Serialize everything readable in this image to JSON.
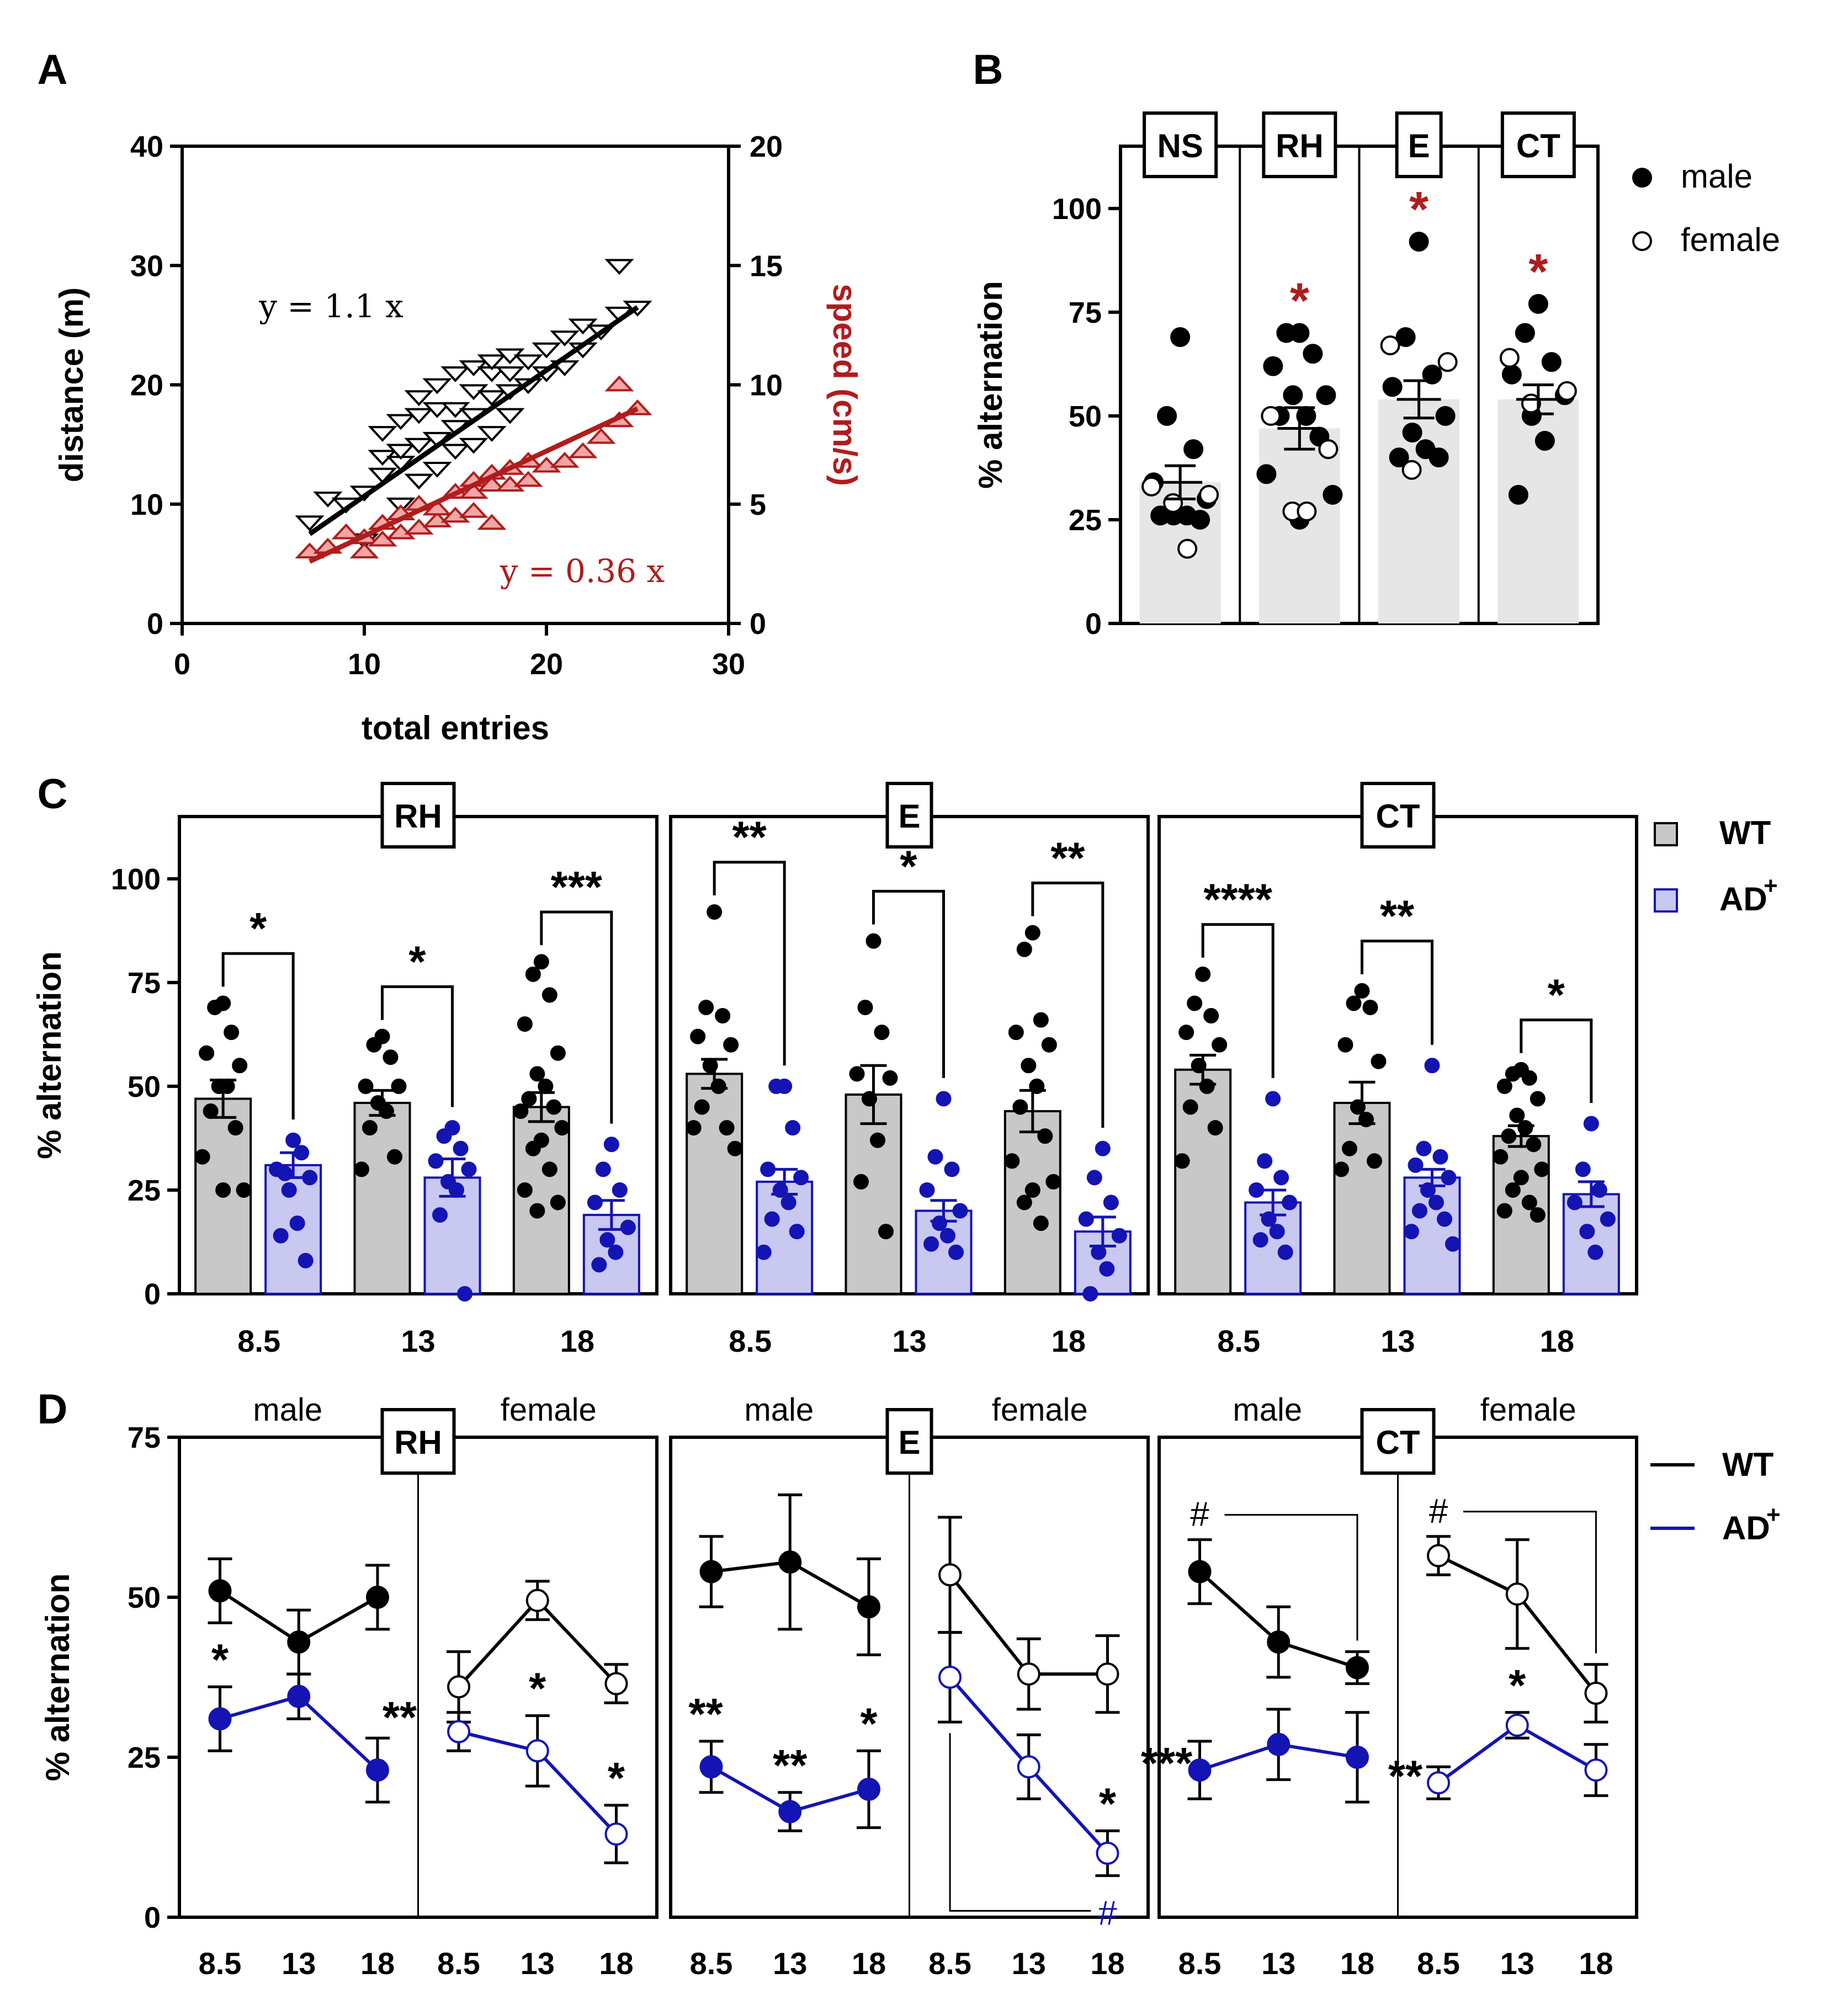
{
  "colors": {
    "black": "#000000",
    "red": "#b01c1c",
    "red_fill": "#f2a6a6",
    "blue": "#1414b4",
    "blue_fill": "#c8c8f0",
    "gray_bar": "#c8c8c8",
    "gray_bar_light": "#e6e6e6",
    "gray_tri": "#8a8a8a"
  },
  "panel_letters": [
    "A",
    "B",
    "C",
    "D"
  ],
  "chart_data": [
    {
      "panel": "A",
      "type": "scatter",
      "xlabel": "total entries",
      "ylabel": "distance (m)",
      "y2label": "speed (cm/s)",
      "xlim": [
        0,
        30
      ],
      "xticks": [
        0,
        10,
        20,
        30
      ],
      "ylim": [
        0,
        40
      ],
      "yticks": [
        0,
        10,
        20,
        30,
        40
      ],
      "y2lim": [
        0,
        20
      ],
      "y2ticks": [
        0,
        5,
        10,
        15,
        20
      ],
      "annotations": [
        "y = 1.1 x",
        "y = 0.36 x"
      ],
      "series": [
        {
          "axis": "left",
          "marker": "triangle-down",
          "fit": {
            "x": [
              7,
              25
            ],
            "y": [
              7.5,
              26.5
            ]
          },
          "points": [
            [
              7,
              8.5
            ],
            [
              8,
              10.5
            ],
            [
              9,
              10
            ],
            [
              10,
              7
            ],
            [
              10,
              11
            ],
            [
              11,
              12.5
            ],
            [
              11,
              14
            ],
            [
              11,
              16
            ],
            [
              12,
              10
            ],
            [
              12,
              13.5
            ],
            [
              12,
              14.5
            ],
            [
              12,
              17
            ],
            [
              13,
              12
            ],
            [
              13,
              15
            ],
            [
              13,
              17.5
            ],
            [
              13,
              19
            ],
            [
              14,
              13
            ],
            [
              14,
              15.5
            ],
            [
              14,
              18
            ],
            [
              14,
              20
            ],
            [
              15,
              14.5
            ],
            [
              15,
              16.5
            ],
            [
              15,
              18
            ],
            [
              15,
              21
            ],
            [
              16,
              15
            ],
            [
              16,
              17.5
            ],
            [
              16,
              19.5
            ],
            [
              16,
              21.5
            ],
            [
              17,
              16
            ],
            [
              17,
              19
            ],
            [
              17,
              21
            ],
            [
              17,
              22
            ],
            [
              18,
              17.5
            ],
            [
              18,
              19.5
            ],
            [
              18,
              21
            ],
            [
              18,
              22.5
            ],
            [
              19,
              20
            ],
            [
              19,
              22
            ],
            [
              20,
              21
            ],
            [
              20,
              23
            ],
            [
              21,
              21.5
            ],
            [
              21,
              24
            ],
            [
              22,
              23
            ],
            [
              22,
              25
            ],
            [
              23,
              24.5
            ],
            [
              24,
              26
            ],
            [
              24,
              30
            ],
            [
              25,
              26.5
            ]
          ]
        },
        {
          "axis": "right",
          "marker": "triangle-up",
          "fit": {
            "x": [
              7,
              25
            ],
            "y": [
              2.6,
              9.0
            ]
          },
          "points": [
            [
              7,
              3
            ],
            [
              8,
              3.2
            ],
            [
              9,
              3.8
            ],
            [
              10,
              3
            ],
            [
              10,
              3.6
            ],
            [
              11,
              3.5
            ],
            [
              11,
              4.2
            ],
            [
              12,
              3.8
            ],
            [
              12,
              4.6
            ],
            [
              13,
              4
            ],
            [
              13,
              5
            ],
            [
              14,
              4.3
            ],
            [
              14,
              4.8
            ],
            [
              15,
              4.5
            ],
            [
              15,
              5.5
            ],
            [
              16,
              4.7
            ],
            [
              16,
              5.5
            ],
            [
              16,
              6
            ],
            [
              17,
              4.2
            ],
            [
              17,
              5.8
            ],
            [
              17,
              6.3
            ],
            [
              18,
              5.8
            ],
            [
              18,
              6.5
            ],
            [
              19,
              6
            ],
            [
              19,
              6.8
            ],
            [
              20,
              6.6
            ],
            [
              21,
              6.8
            ],
            [
              22,
              7.2
            ],
            [
              23,
              7.8
            ],
            [
              24,
              8.5
            ],
            [
              24,
              10
            ],
            [
              25,
              9
            ]
          ]
        }
      ]
    },
    {
      "panel": "B",
      "type": "bar",
      "ylabel": "% alternation",
      "ylim": [
        0,
        115
      ],
      "yticks": [
        0,
        25,
        50,
        75,
        100
      ],
      "categories": [
        "NS",
        "RH",
        "E",
        "CT"
      ],
      "means": [
        34,
        47,
        54,
        54
      ],
      "sem": [
        4,
        5,
        4.5,
        3.5
      ],
      "significance": [
        "",
        "*",
        "*",
        "*"
      ],
      "legend": [
        "male",
        "female"
      ],
      "legend_position": "top-right",
      "points": [
        {
          "male": [
            69,
            50,
            42,
            34,
            30,
            26,
            26,
            26,
            25
          ],
          "female": [
            33,
            31,
            29,
            18
          ]
        },
        {
          "male": [
            70,
            70,
            65,
            62,
            55,
            55,
            50,
            50,
            45,
            36,
            31,
            25
          ],
          "female": [
            50,
            42,
            27,
            27
          ]
        },
        {
          "male": [
            92,
            69,
            60,
            57,
            50,
            46,
            42,
            40,
            40
          ],
          "female": [
            67,
            63,
            37
          ]
        },
        {
          "male": [
            77,
            70,
            63,
            60,
            55,
            50,
            44,
            31
          ],
          "female": [
            64,
            56,
            53
          ]
        }
      ]
    },
    {
      "panel": "C",
      "type": "bar",
      "ylabel": "% alternation",
      "ylim": [
        0,
        115
      ],
      "yticks": [
        0,
        25,
        50,
        75,
        100
      ],
      "legend": [
        "WT",
        "AD+"
      ],
      "legend_position": "top-right",
      "panels": [
        {
          "name": "RH",
          "ages": [
            "8.5",
            "13",
            "18"
          ],
          "sig": [
            "*",
            "*",
            "***"
          ],
          "wt": {
            "means": [
              47,
              46,
              45
            ],
            "sem": [
              4.5,
              3,
              3.5
            ],
            "points": [
              [
                70,
                69,
                63,
                58,
                55,
                50,
                50,
                44,
                40,
                33,
                25,
                25
              ],
              [
                62,
                60,
                57,
                50,
                50,
                46,
                44,
                40,
                33,
                30
              ],
              [
                80,
                77,
                72,
                65,
                58,
                53,
                50,
                47,
                45,
                44,
                40,
                37,
                35,
                30,
                25,
                22,
                20
              ]
            ]
          },
          "ad": {
            "means": [
              31,
              28,
              19
            ],
            "sem": [
              3,
              4.5,
              3.5
            ],
            "points": [
              [
                37,
                29,
                34,
                30,
                28,
                25,
                17,
                14,
                8
              ],
              [
                40,
                38,
                35,
                32,
                30,
                27,
                25,
                19,
                0
              ],
              [
                36,
                30,
                25,
                22,
                16,
                13,
                10,
                7
              ]
            ]
          }
        },
        {
          "name": "E",
          "ages": [
            "8.5",
            "13",
            "18"
          ],
          "sig": [
            "**",
            "*",
            "**"
          ],
          "wt": {
            "means": [
              53,
              48,
              44
            ],
            "sem": [
              3.5,
              7,
              5
            ],
            "points": [
              [
                92,
                69,
                67,
                62,
                60,
                55,
                50,
                45,
                40,
                40,
                35
              ],
              [
                85,
                69,
                63,
                53,
                52,
                47,
                37,
                27,
                15
              ],
              [
                87,
                83,
                66,
                63,
                60,
                55,
                50,
                45,
                38,
                32,
                27,
                25,
                22,
                17
              ]
            ]
          },
          "ad": {
            "means": [
              27,
              20,
              15
            ],
            "sem": [
              3,
              2.5,
              3.5
            ],
            "points": [
              [
                50,
                50,
                40,
                30,
                28,
                25,
                22,
                18,
                15,
                10
              ],
              [
                47,
                33,
                30,
                25,
                20,
                17,
                14,
                12,
                10
              ],
              [
                35,
                28,
                22,
                18,
                14,
                10,
                6,
                0
              ]
            ]
          }
        },
        {
          "name": "CT",
          "ages": [
            "8.5",
            "13",
            "18"
          ],
          "sig": [
            "****",
            "**",
            "*"
          ],
          "wt": {
            "means": [
              54,
              46,
              38
            ],
            "sem": [
              3.5,
              5,
              2.5
            ],
            "points": [
              [
                77,
                70,
                67,
                63,
                60,
                55,
                50,
                45,
                40,
                32
              ],
              [
                73,
                70,
                69,
                60,
                56,
                45,
                42,
                35,
                32,
                30
              ],
              [
                54,
                53,
                52,
                50,
                47,
                43,
                40,
                38,
                36,
                33,
                30,
                28,
                25,
                22,
                20,
                19
              ]
            ]
          },
          "ad": {
            "means": [
              22,
              28,
              24
            ],
            "sem": [
              3,
              2,
              3
            ],
            "points": [
              [
                47,
                32,
                28,
                25,
                22,
                18,
                15,
                13,
                10
              ],
              [
                55,
                35,
                33,
                31,
                28,
                25,
                22,
                20,
                18,
                15,
                12
              ],
              [
                41,
                30,
                25,
                22,
                18,
                15,
                10
              ]
            ]
          }
        }
      ]
    },
    {
      "panel": "D",
      "type": "line",
      "ylabel": "% alternation",
      "ylim": [
        0,
        75
      ],
      "yticks": [
        0,
        25,
        50,
        75
      ],
      "x": [
        "8.5",
        "13",
        "18"
      ],
      "legend": [
        "WT",
        "AD+"
      ],
      "legend_position": "top-right",
      "panels": [
        {
          "name": "RH",
          "male": {
            "wt": [
              51,
              43,
              50
            ],
            "wt_sem": [
              5,
              5,
              5
            ],
            "ad": [
              31,
              34.5,
              23
            ],
            "ad_sem": [
              5,
              3.5,
              5
            ],
            "ad_sig": [
              "*",
              "",
              "**"
            ],
            "wt_hash": ""
          },
          "female": {
            "wt": [
              36,
              49.5,
              36.5
            ],
            "wt_sem": [
              5.5,
              3,
              3
            ],
            "ad": [
              29,
              26,
              13
            ],
            "ad_sem": [
              3,
              5.5,
              4.5
            ],
            "ad_sig": [
              "",
              "*",
              "*"
            ],
            "wt_hash": ""
          }
        },
        {
          "name": "E",
          "male": {
            "wt": [
              54,
              55.5,
              48.5
            ],
            "wt_sem": [
              5.5,
              10.5,
              7.5
            ],
            "ad": [
              23.5,
              16.5,
              20
            ],
            "ad_sem": [
              4,
              3,
              6
            ],
            "ad_sig": [
              "**",
              "**",
              "*"
            ],
            "wt_hash": ""
          },
          "female": {
            "wt": [
              53.5,
              38,
              38
            ],
            "wt_sem": [
              9,
              5.5,
              6
            ],
            "ad": [
              37.5,
              23.5,
              10
            ],
            "ad_sem": [
              7,
              5,
              3.5
            ],
            "ad_sig": [
              "",
              "",
              "*"
            ],
            "ad_hash": "#"
          }
        },
        {
          "name": "CT",
          "male": {
            "wt": [
              54,
              43,
              39
            ],
            "wt_sem": [
              5,
              5.5,
              2.5
            ],
            "ad": [
              23,
              27,
              25
            ],
            "ad_sem": [
              4.5,
              5.5,
              7
            ],
            "ad_sig": [
              "***",
              "",
              ""
            ],
            "wt_hash": "#"
          },
          "female": {
            "wt": [
              56.5,
              50.5,
              35
            ],
            "wt_sem": [
              3,
              8.5,
              4.5
            ],
            "ad": [
              21,
              30,
              23
            ],
            "ad_sem": [
              2.5,
              2,
              4
            ],
            "ad_sig": [
              "**",
              "*",
              ""
            ],
            "wt_hash": "#"
          }
        }
      ],
      "sublabels": [
        "male",
        "female"
      ]
    }
  ]
}
